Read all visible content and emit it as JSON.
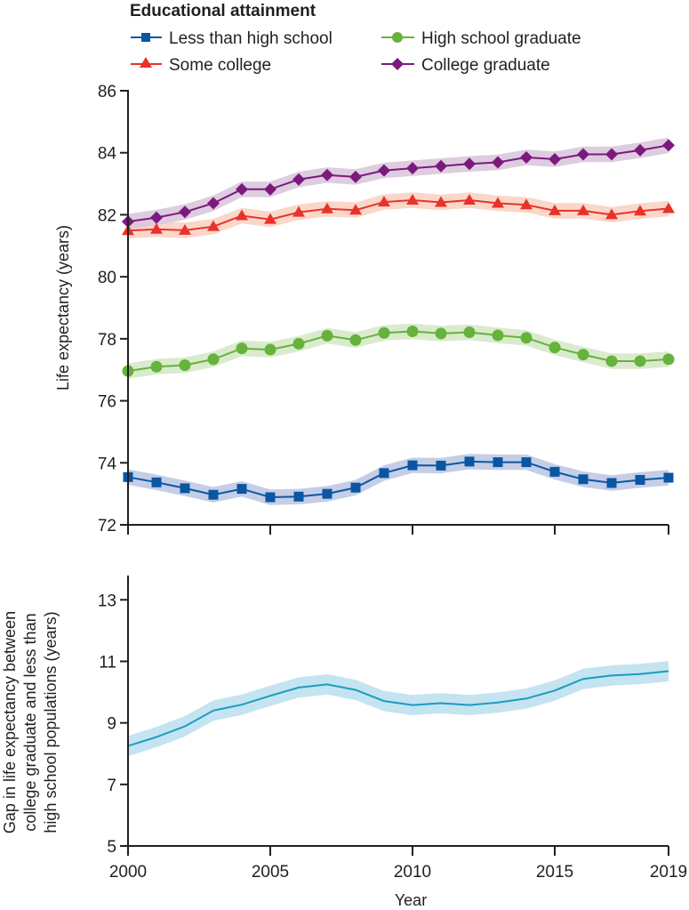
{
  "chart_data": [
    {
      "type": "line",
      "legend_title": "Educational attainment",
      "legend_placement": "top",
      "xlabel": "",
      "ylabel": "Life expectancy (years)",
      "xlim": [
        2000,
        2019
      ],
      "ylim": [
        72,
        86
      ],
      "yticks": [
        "72",
        "74",
        "76",
        "78",
        "80",
        "82",
        "84",
        "86"
      ],
      "xticks": [
        2000,
        2005,
        2010,
        2015,
        2019
      ],
      "xtick_labels_shown": false,
      "grid": false,
      "x": [
        2000,
        2001,
        2002,
        2003,
        2004,
        2005,
        2006,
        2007,
        2008,
        2009,
        2010,
        2011,
        2012,
        2013,
        2014,
        2015,
        2016,
        2017,
        2018,
        2019
      ],
      "series": [
        {
          "name": "Less than high school",
          "marker": "square",
          "color": "#0b56a3",
          "band_color": "#bfc9e4",
          "values": [
            73.54,
            73.37,
            73.18,
            72.97,
            73.16,
            72.89,
            72.91,
            73.0,
            73.2,
            73.67,
            73.92,
            73.91,
            74.04,
            74.02,
            74.02,
            73.71,
            73.47,
            73.35,
            73.45,
            73.52
          ]
        },
        {
          "name": "High school graduate",
          "marker": "circle",
          "color": "#66b23c",
          "band_color": "#d6e9c8",
          "values": [
            76.96,
            77.1,
            77.15,
            77.34,
            77.69,
            77.65,
            77.84,
            78.1,
            77.96,
            78.19,
            78.24,
            78.17,
            78.21,
            78.11,
            78.03,
            77.72,
            77.49,
            77.28,
            77.28,
            77.34
          ]
        },
        {
          "name": "Some college",
          "marker": "triangle",
          "color": "#e8332a",
          "band_color": "#fbd3c3",
          "values": [
            81.49,
            81.53,
            81.5,
            81.62,
            81.97,
            81.85,
            82.08,
            82.19,
            82.15,
            82.41,
            82.47,
            82.4,
            82.47,
            82.37,
            82.32,
            82.13,
            82.13,
            82.0,
            82.12,
            82.2
          ]
        },
        {
          "name": "College graduate",
          "marker": "diamond",
          "color": "#7b1a7c",
          "band_color": "#dac6dd",
          "values": [
            81.78,
            81.91,
            82.09,
            82.37,
            82.82,
            82.82,
            83.14,
            83.28,
            83.22,
            83.43,
            83.5,
            83.57,
            83.64,
            83.69,
            83.85,
            83.79,
            83.95,
            83.95,
            84.08,
            84.24
          ]
        }
      ],
      "band_halfwidth": 0.25
    },
    {
      "type": "area",
      "xlabel": "Year",
      "ylabel_lines": [
        "Gap in life expectancy between",
        "college graduate and less than",
        "high school populations (years)"
      ],
      "xlim": [
        2000,
        2019
      ],
      "ylim": [
        5,
        13.8
      ],
      "yticks": [
        "5",
        "7",
        "9",
        "11",
        "13"
      ],
      "xticks": [
        "2000",
        "2005",
        "2010",
        "2015",
        "2019"
      ],
      "grid": false,
      "x": [
        2000,
        2001,
        2002,
        2003,
        2004,
        2005,
        2006,
        2007,
        2008,
        2009,
        2010,
        2011,
        2012,
        2013,
        2014,
        2015,
        2016,
        2017,
        2018,
        2019
      ],
      "series": [
        {
          "name": "Gap",
          "color": "#1b9bc2",
          "band_color": "#c3e4f0",
          "values": [
            8.25,
            8.54,
            8.89,
            9.4,
            9.59,
            9.88,
            10.15,
            10.25,
            10.07,
            9.71,
            9.58,
            9.64,
            9.58,
            9.66,
            9.79,
            10.05,
            10.43,
            10.54,
            10.59,
            10.68
          ]
        }
      ],
      "band_halfwidth": 0.33
    }
  ]
}
